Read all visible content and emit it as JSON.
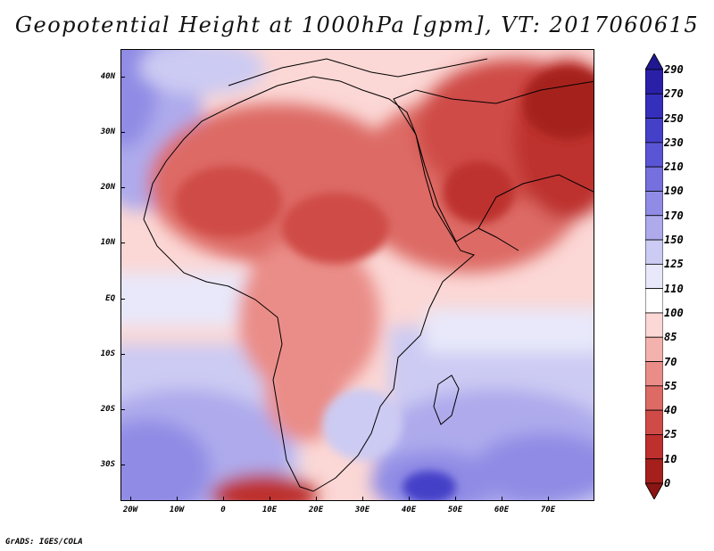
{
  "title": "Geopotential Height at 1000hPa [gpm], VT: 2017060615",
  "footer": "GrADS: IGES/COLA",
  "axes": {
    "lat_labels": [
      "40N",
      "30N",
      "20N",
      "10N",
      "EQ",
      "10S",
      "20S",
      "30S"
    ],
    "lat_values": [
      40,
      30,
      20,
      10,
      0,
      -10,
      -20,
      -30
    ],
    "lon_labels": [
      "20W",
      "10W",
      "0",
      "10E",
      "20E",
      "30E",
      "40E",
      "50E",
      "60E",
      "70E"
    ],
    "lon_values": [
      -20,
      -10,
      0,
      10,
      20,
      30,
      40,
      50,
      60,
      70
    ],
    "lat_range": [
      -36,
      45
    ],
    "lon_range": [
      -22,
      80
    ]
  },
  "colorbar": {
    "levels": [
      "290",
      "270",
      "250",
      "230",
      "210",
      "190",
      "170",
      "150",
      "125",
      "110",
      "100",
      "85",
      "70",
      "55",
      "40",
      "25",
      "10",
      "0"
    ],
    "colors": [
      "#201890",
      "#2a20a8",
      "#3530bb",
      "#4440c8",
      "#5a55d5",
      "#7570dd",
      "#908ce5",
      "#aeaaec",
      "#cccbf3",
      "#e8e8fa",
      "#ffffff",
      "#fbd7d5",
      "#f4b2ae",
      "#ea8d88",
      "#dd6a65",
      "#cf4b47",
      "#bd302d",
      "#a5201d",
      "#8a1513"
    ]
  },
  "colors": {
    "land_mid": "#dd6a65",
    "land_high": "#bd302d",
    "ocean_low": "#908ce5",
    "ocean_mid": "#cccbf3",
    "neutral": "#ffffff",
    "warm_light": "#f4b2ae"
  }
}
